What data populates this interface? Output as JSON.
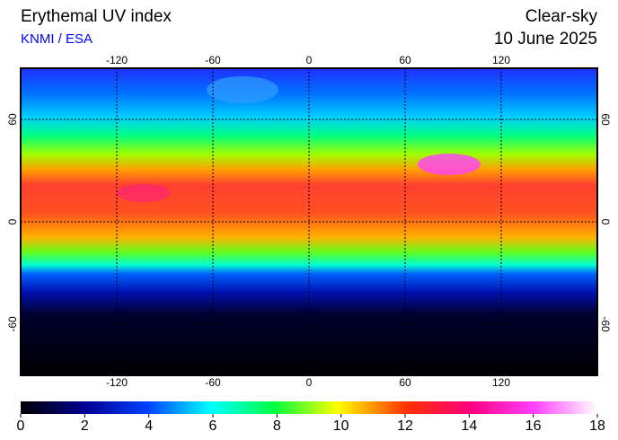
{
  "header": {
    "title": "Erythemal UV index",
    "source": "KNMI / ESA",
    "product": "Clear-sky",
    "date": "10 June 2025"
  },
  "map": {
    "xlim": [
      -180,
      180
    ],
    "ylim": [
      -90,
      90
    ],
    "xticks": [
      -120,
      -60,
      0,
      60,
      120
    ],
    "yticks": [
      60,
      0,
      -60
    ]
  },
  "colorbar": {
    "lim": [
      0,
      18
    ],
    "ticks": [
      0,
      2,
      4,
      6,
      8,
      10,
      12,
      14,
      16,
      18
    ]
  }
}
